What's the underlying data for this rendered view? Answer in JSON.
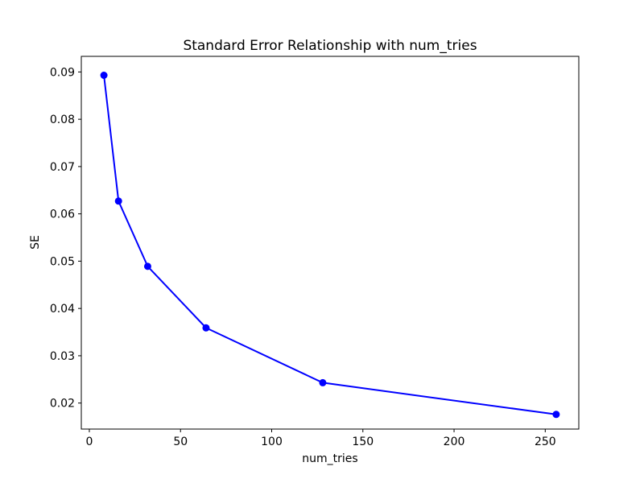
{
  "figure": {
    "background": "#ffffff",
    "axes_edge_color": "#000000"
  },
  "chart_data": {
    "type": "line",
    "title": "Standard Error Relationship with num_tries",
    "xlabel": "num_tries",
    "ylabel": "SE",
    "x": [
      8,
      16,
      32,
      64,
      128,
      256
    ],
    "y": [
      0.0893,
      0.0627,
      0.0489,
      0.0359,
      0.0243,
      0.0176
    ],
    "xlim": [
      -4.4,
      268.4
    ],
    "ylim": [
      0.0145,
      0.0933
    ],
    "xticks": [
      0,
      50,
      100,
      150,
      200,
      250
    ],
    "yticks": [
      0.02,
      0.03,
      0.04,
      0.05,
      0.06,
      0.07,
      0.08,
      0.09
    ],
    "ytick_decimals": 2,
    "grid": false,
    "legend": null,
    "line_color": "#0000ff",
    "marker": "circle",
    "marker_color": "#0000ff"
  }
}
